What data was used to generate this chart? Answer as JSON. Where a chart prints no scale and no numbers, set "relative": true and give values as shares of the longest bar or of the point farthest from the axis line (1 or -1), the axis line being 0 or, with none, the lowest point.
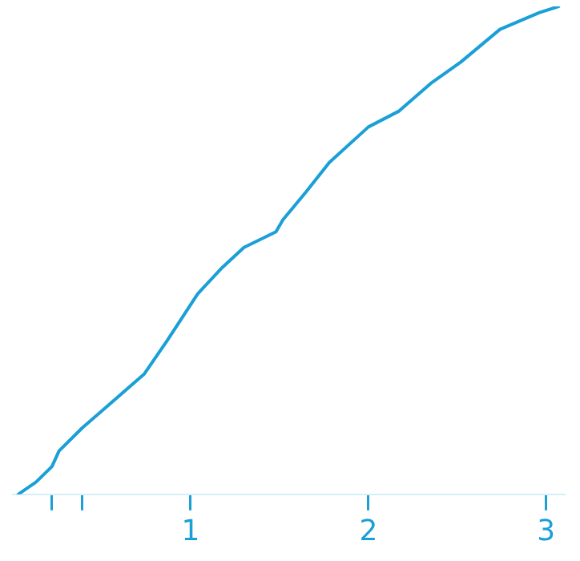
{
  "chart_data": {
    "type": "line",
    "relative": true,
    "x": [
      0.03,
      0.13,
      0.22,
      0.26,
      0.39,
      0.52,
      0.74,
      0.87,
      1.04,
      1.17,
      1.3,
      1.48,
      1.52,
      1.65,
      1.78,
      2.0,
      2.17,
      2.35,
      2.52,
      2.74,
      2.96,
      3.07
    ],
    "series": [
      {
        "color": "#1a9fd6",
        "values": [
          0,
          0.025,
          0.057,
          0.089,
          0.136,
          0.177,
          0.247,
          0.316,
          0.411,
          0.462,
          0.506,
          0.538,
          0.563,
          0.62,
          0.68,
          0.753,
          0.785,
          0.842,
          0.886,
          0.953,
          0.987,
          1
        ]
      }
    ],
    "xlim": [
      0,
      3.1
    ],
    "xticks": [
      {
        "value": 0.22,
        "label": null
      },
      {
        "value": 0.39,
        "label": null
      },
      1,
      2,
      3
    ],
    "grid": false,
    "legend": false,
    "marker": "none",
    "line_style": "solid"
  }
}
